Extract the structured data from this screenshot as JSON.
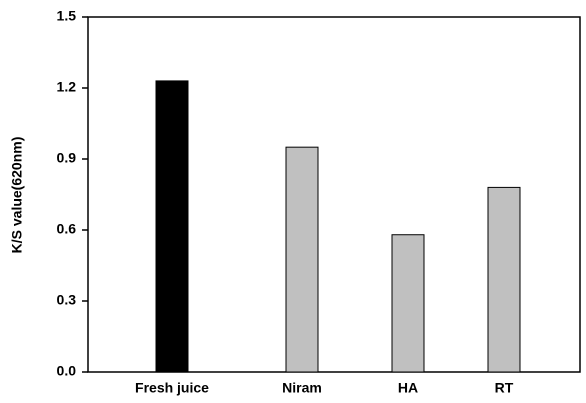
{
  "chart_data": {
    "type": "bar",
    "ylabel": "K/S value(620nm)",
    "categories": [
      "Fresh juice",
      "Niram",
      "HA",
      "RT"
    ],
    "values": [
      1.23,
      0.95,
      0.58,
      0.78
    ],
    "colors": [
      "#000000",
      "#c0c0c0",
      "#c0c0c0",
      "#c0c0c0"
    ],
    "ylim": [
      0,
      1.5
    ],
    "yticks": [
      {
        "value": 0,
        "label": "0.0"
      },
      0.3,
      0.6,
      0.9,
      1.2,
      1.5
    ],
    "grid": false
  }
}
